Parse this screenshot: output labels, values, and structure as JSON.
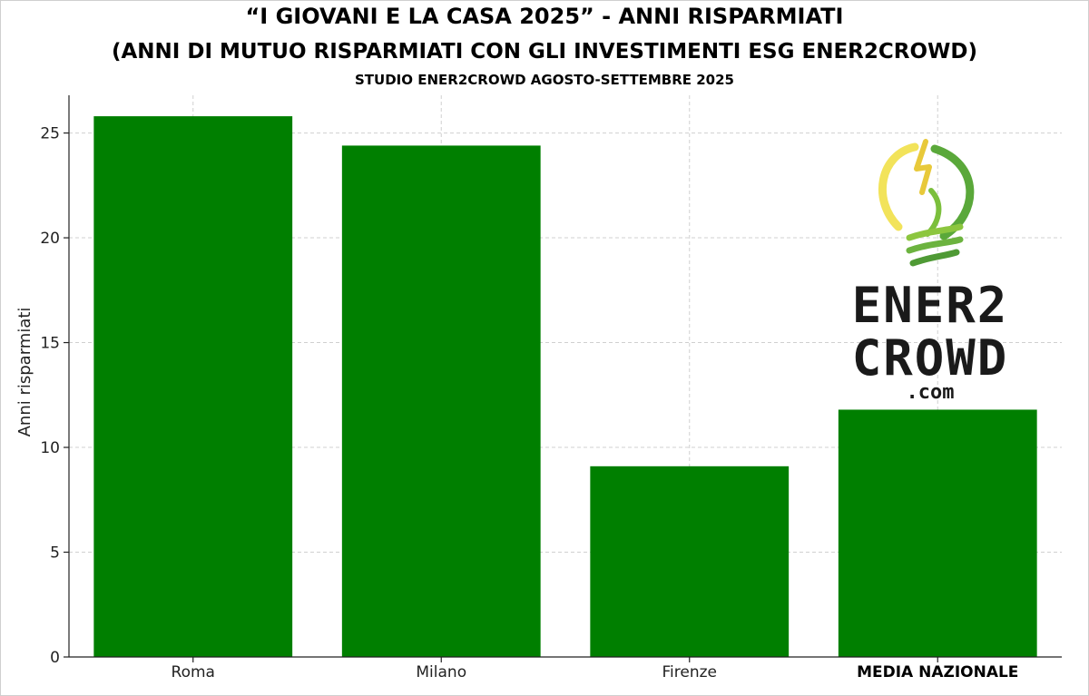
{
  "header": {
    "title": "“I GIOVANI E LA CASA 2025” - ANNI RISPARMIATI",
    "subtitle": "(ANNI DI MUTUO RISPARMIATI CON GLI INVESTIMENTI ESG ENER2CROWD)",
    "source": "STUDIO ENER2CROWD AGOSTO-SETTEMBRE 2025"
  },
  "logo": {
    "line1": "ENER2",
    "line2": "CROWD",
    "line3": ".com",
    "icon": "lightbulb-leaf-icon",
    "colors": {
      "yellow": "#f2e35a",
      "green": "#5aa83a",
      "text": "#1a1a1a"
    }
  },
  "chart_data": {
    "type": "bar",
    "title": "“I GIOVANI E LA CASA 2025” - ANNI RISPARMIATI",
    "subtitle": "(ANNI DI MUTUO RISPARMIATI CON GLI INVESTIMENTI ESG ENER2CROWD)",
    "xlabel": "",
    "ylabel": "Anni risparmiati",
    "categories": [
      "Roma",
      "Milano",
      "Firenze",
      "MEDIA NAZIONALE"
    ],
    "values": [
      25.8,
      24.4,
      9.1,
      11.8
    ],
    "ylim": [
      0,
      26.8
    ],
    "yticks": [
      0,
      5,
      10,
      15,
      20,
      25
    ],
    "grid": true,
    "bar_color": "#007f00",
    "bold_categories": [
      "MEDIA NAZIONALE"
    ]
  }
}
